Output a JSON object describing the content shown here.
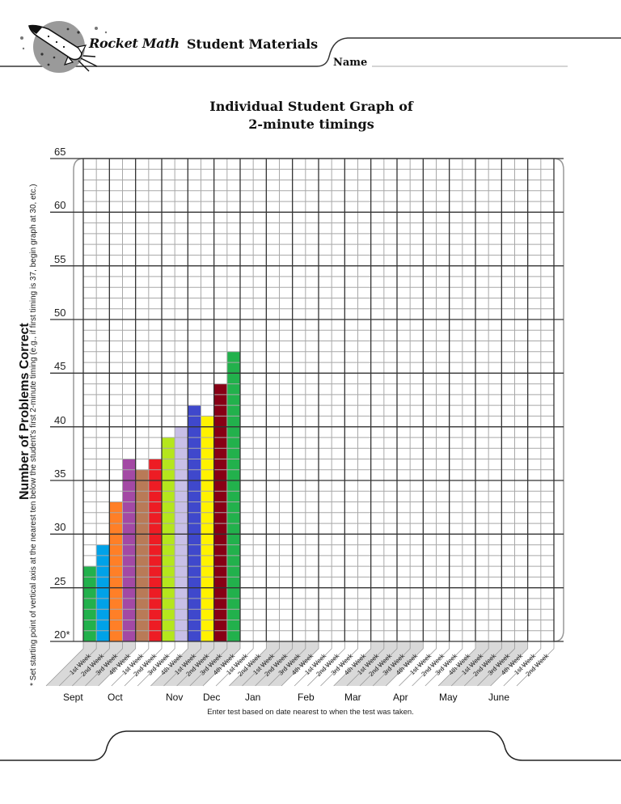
{
  "header": {
    "brand": "Rocket Math",
    "section": "Student Materials",
    "name_label": "Name",
    "name_value": ""
  },
  "title": {
    "line1": "Individual Student Graph of",
    "line2": "2-minute timings"
  },
  "y_axis": {
    "label": "Number of Problems Correct",
    "note": "* Set starting point of vertical axis at the nearest ten below the student's first 2-minute timing (e.g., if first timing is 37, begin graph at 30, etc.)",
    "ticks": [
      "65",
      "60",
      "55",
      "50",
      "45",
      "40",
      "35",
      "30",
      "25",
      "20*"
    ]
  },
  "x_axis": {
    "months": [
      "Sept",
      "Oct",
      "Nov",
      "Dec",
      "Jan",
      "Feb",
      "Mar",
      "Apr",
      "May",
      "June"
    ],
    "footnote": "Enter test based on date nearest to when the test was taken."
  },
  "colors": {
    "grid_major": "#333333",
    "grid_minor": "#a8a8a8",
    "label_band": "#d9d9d9",
    "logo_circle": "#9a9a9a"
  },
  "chart_data": {
    "type": "bar",
    "title": "Individual Student Graph of 2-minute timings",
    "xlabel": "",
    "ylabel": "Number of Problems Correct",
    "ylim": [
      20,
      65
    ],
    "grid": true,
    "categories": [
      "Sept 1st Week",
      "Sept 2nd Week",
      "Sept 3rd Week",
      "Sept 4th Week",
      "Oct 1st Week",
      "Oct 2nd Week",
      "Oct 3rd Week",
      "Oct 4th Week",
      "Nov 1st Week",
      "Nov 2nd Week",
      "Nov 3rd Week",
      "Nov 4th Week",
      "Dec 1st Week",
      "Dec 2nd Week",
      "Jan 1st Week",
      "Jan 2nd Week",
      "Jan 3rd Week",
      "Jan 4th Week",
      "Feb 1st Week",
      "Feb 2nd Week",
      "Feb 3rd Week",
      "Feb 4th Week",
      "Mar 1st Week",
      "Mar 2nd Week",
      "Mar 3rd Week",
      "Mar 4th Week",
      "Apr 1st Week",
      "Apr 2nd Week",
      "Apr 3rd Week",
      "Apr 4th Week",
      "May 1st Week",
      "May 2nd Week",
      "May 3rd Week",
      "May 4th Week",
      "June 1st Week",
      "June 2nd Week"
    ],
    "week_labels": [
      "1st Week",
      "2nd Week",
      "3rd Week",
      "4th Week",
      "1st Week",
      "2nd Week",
      "3rd Week",
      "4th Week",
      "1st Week",
      "2nd Week",
      "3rd Week",
      "4th Week",
      "1st Week",
      "2nd Week",
      "1st Week",
      "2nd Week",
      "3rd Week",
      "4th Week",
      "1st Week",
      "2nd Week",
      "3rd Week",
      "4th Week",
      "1st Week",
      "2nd Week",
      "3rd Week",
      "4th Week",
      "1st Week",
      "2nd Week",
      "3rd Week",
      "4th Week",
      "1st Week",
      "2nd Week",
      "3rd Week",
      "4th Week",
      "1st Week",
      "2nd Week"
    ],
    "month_groups": [
      {
        "month": "Sept",
        "weeks": 4,
        "shaded": true
      },
      {
        "month": "Oct",
        "weeks": 4,
        "shaded": false
      },
      {
        "month": "Nov",
        "weeks": 4,
        "shaded": true
      },
      {
        "month": "Dec",
        "weeks": 2,
        "shaded": false
      },
      {
        "month": "Jan",
        "weeks": 4,
        "shaded": true
      },
      {
        "month": "Feb",
        "weeks": 4,
        "shaded": false
      },
      {
        "month": "Mar",
        "weeks": 4,
        "shaded": true
      },
      {
        "month": "Apr",
        "weeks": 4,
        "shaded": false
      },
      {
        "month": "May",
        "weeks": 4,
        "shaded": true
      },
      {
        "month": "June",
        "weeks": 2,
        "shaded": false
      }
    ],
    "values": [
      27,
      29,
      33,
      37,
      36,
      37,
      39,
      40,
      42,
      41,
      44,
      47,
      null,
      null,
      null,
      null,
      null,
      null,
      null,
      null,
      null,
      null,
      null,
      null,
      null,
      null,
      null,
      null,
      null,
      null,
      null,
      null,
      null,
      null,
      null,
      null
    ],
    "bar_colors": [
      "#22b14c",
      "#00a2e8",
      "#ff7f27",
      "#a349a4",
      "#b97a57",
      "#ed1c24",
      "#b5e61d",
      "#c8bfe7",
      "#3f48cc",
      "#fff200",
      "#880015",
      "#22b14c"
    ]
  }
}
